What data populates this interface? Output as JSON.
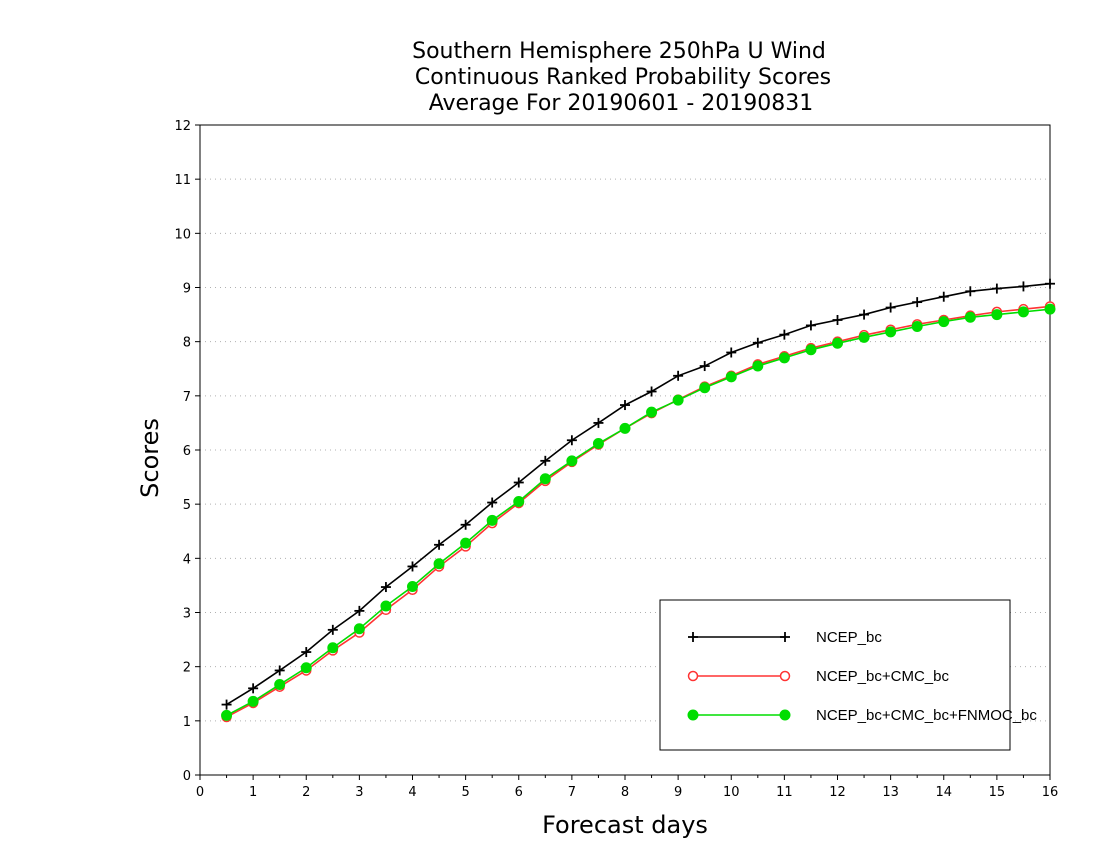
{
  "chart_data": {
    "type": "line",
    "title_lines": [
      "Southern Hemisphere 250hPa U Wind",
      "Continuous Ranked Probability Scores",
      "Average For 20190601 - 20190831"
    ],
    "xlabel": "Forecast days",
    "ylabel": "Scores",
    "xlim": [
      0,
      16
    ],
    "ylim": [
      0,
      12
    ],
    "x_ticks": [
      "0",
      "1",
      "2",
      "3",
      "4",
      "5",
      "6",
      "7",
      "8",
      "9",
      "10",
      "11",
      "12",
      "13",
      "14",
      "15",
      "16"
    ],
    "y_ticks": [
      "0",
      "1",
      "2",
      "3",
      "4",
      "5",
      "6",
      "7",
      "8",
      "9",
      "10",
      "11",
      "12"
    ],
    "grid": "horizontal dotted",
    "legend_position": "bottom-right",
    "x": [
      0.5,
      1,
      1.5,
      2,
      2.5,
      3,
      3.5,
      4,
      4.5,
      5,
      5.5,
      6,
      6.5,
      7,
      7.5,
      8,
      8.5,
      9,
      9.5,
      10,
      10.5,
      11,
      11.5,
      12,
      12.5,
      13,
      13.5,
      14,
      14.5,
      15,
      15.5,
      16
    ],
    "series": [
      {
        "name": "NCEP_bc",
        "color": "#000000",
        "marker": "plus",
        "values": [
          1.3,
          1.6,
          1.93,
          2.27,
          2.68,
          3.03,
          3.47,
          3.85,
          4.25,
          4.62,
          5.03,
          5.4,
          5.8,
          6.18,
          6.5,
          6.83,
          7.08,
          7.37,
          7.55,
          7.8,
          7.98,
          8.13,
          8.3,
          8.4,
          8.5,
          8.63,
          8.73,
          8.83,
          8.93,
          8.98,
          9.02,
          9.07
        ]
      },
      {
        "name": "NCEP_bc+CMC_bc",
        "color": "#ff3333",
        "marker": "open-circle",
        "values": [
          1.07,
          1.33,
          1.63,
          1.93,
          2.3,
          2.63,
          3.05,
          3.42,
          3.85,
          4.22,
          4.65,
          5.02,
          5.43,
          5.78,
          6.1,
          6.4,
          6.68,
          6.93,
          7.17,
          7.37,
          7.58,
          7.73,
          7.88,
          8.0,
          8.12,
          8.22,
          8.32,
          8.4,
          8.48,
          8.55,
          8.6,
          8.65
        ]
      },
      {
        "name": "NCEP_bc+CMC_bc+FNMOC_bc",
        "color": "#00dd00",
        "marker": "filled-circle",
        "values": [
          1.1,
          1.36,
          1.67,
          1.98,
          2.35,
          2.7,
          3.12,
          3.48,
          3.9,
          4.28,
          4.7,
          5.05,
          5.47,
          5.8,
          6.12,
          6.4,
          6.7,
          6.92,
          7.15,
          7.35,
          7.55,
          7.7,
          7.85,
          7.97,
          8.08,
          8.18,
          8.28,
          8.37,
          8.45,
          8.5,
          8.55,
          8.6
        ]
      }
    ]
  }
}
